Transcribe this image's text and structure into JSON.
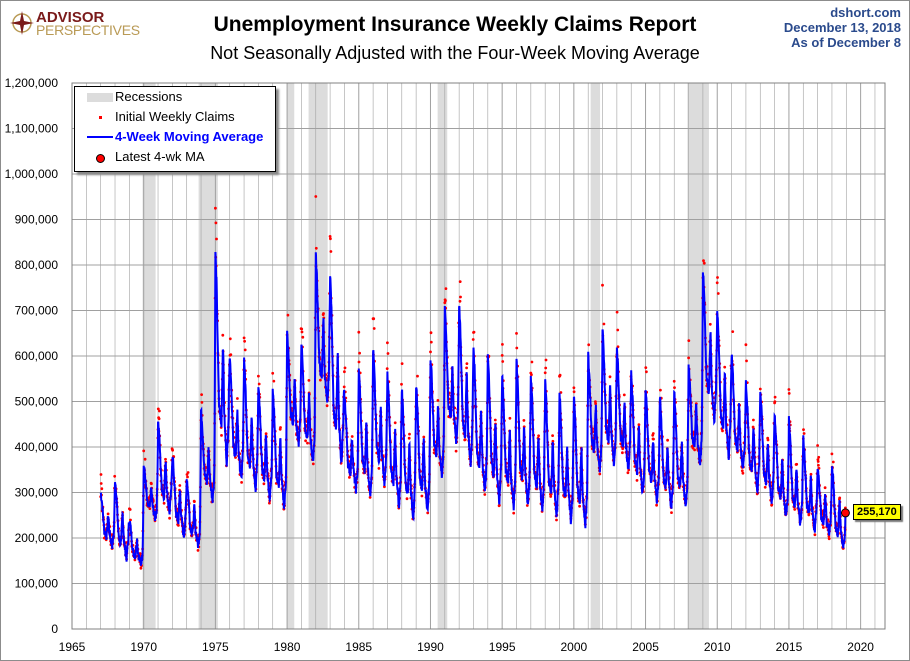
{
  "header": {
    "title": "Unemployment Insurance Weekly Claims Report",
    "subtitle": "Not Seasonally Adjusted with the Four-Week Moving Average",
    "source": "dshort.com",
    "date": "December 13, 2018",
    "as_of": "As  of December 8",
    "logo_text": [
      "ADVISOR",
      "PERSPECTIVES"
    ]
  },
  "colors": {
    "ma": "#0000ff",
    "claims": "#ff0000",
    "recession": "#dcdcdc",
    "grid": "#a0a0a0",
    "latest_label_bg": "#ffff00"
  },
  "chart_data": {
    "type": "line",
    "title": "Unemployment Insurance Weekly Claims Report",
    "subtitle": "Not Seasonally Adjusted with the Four-Week Moving Average",
    "xlim": [
      1965,
      2021.7
    ],
    "ylim": [
      0,
      1200000
    ],
    "x_ticks": [
      1965,
      1970,
      1975,
      1980,
      1985,
      1990,
      1995,
      2000,
      2005,
      2010,
      2015,
      2020
    ],
    "y_ticks": [
      0,
      100000,
      200000,
      300000,
      400000,
      500000,
      600000,
      700000,
      800000,
      900000,
      1000000,
      1100000,
      1200000
    ],
    "y_tick_labels": [
      "0",
      "100,000",
      "200,000",
      "300,000",
      "400,000",
      "500,000",
      "600,000",
      "700,000",
      "800,000",
      "900,000",
      "1,000,000",
      "1,100,000",
      "1,200,000"
    ],
    "grid": true,
    "legend_position": "top-left",
    "legend": [
      "Recessions",
      "Initial Weekly Claims",
      "4-Week Moving Average",
      "Latest 4-wk MA"
    ],
    "recessions": [
      [
        1969.92,
        1970.83
      ],
      [
        1973.83,
        1975.17
      ],
      [
        1980.0,
        1980.5
      ],
      [
        1981.5,
        1982.83
      ],
      [
        1990.5,
        1991.17
      ],
      [
        2001.17,
        2001.83
      ],
      [
        2007.92,
        2009.42
      ]
    ],
    "annual_ma_peak_trough": [
      [
        1967,
        300000,
        180000
      ],
      [
        1968,
        330000,
        150000
      ],
      [
        1969,
        240000,
        140000
      ],
      [
        1970,
        360000,
        240000
      ],
      [
        1971,
        460000,
        250000
      ],
      [
        1972,
        380000,
        200000
      ],
      [
        1973,
        330000,
        180000
      ],
      [
        1974,
        480000,
        280000
      ],
      [
        1975,
        830000,
        350000
      ],
      [
        1976,
        600000,
        320000
      ],
      [
        1977,
        590000,
        300000
      ],
      [
        1978,
        530000,
        280000
      ],
      [
        1979,
        530000,
        260000
      ],
      [
        1980,
        650000,
        400000
      ],
      [
        1981,
        630000,
        360000
      ],
      [
        1982,
        825000,
        480000
      ],
      [
        1983,
        785000,
        350000
      ],
      [
        1984,
        510000,
        300000
      ],
      [
        1985,
        570000,
        290000
      ],
      [
        1986,
        615000,
        310000
      ],
      [
        1987,
        560000,
        260000
      ],
      [
        1988,
        530000,
        240000
      ],
      [
        1989,
        540000,
        250000
      ],
      [
        1990,
        600000,
        330000
      ],
      [
        1991,
        710000,
        400000
      ],
      [
        1992,
        715000,
        350000
      ],
      [
        1993,
        620000,
        290000
      ],
      [
        1994,
        600000,
        270000
      ],
      [
        1995,
        560000,
        260000
      ],
      [
        1996,
        590000,
        260000
      ],
      [
        1997,
        560000,
        250000
      ],
      [
        1998,
        540000,
        240000
      ],
      [
        1999,
        520000,
        230000
      ],
      [
        2000,
        520000,
        220000
      ],
      [
        2001,
        600000,
        340000
      ],
      [
        2002,
        660000,
        350000
      ],
      [
        2003,
        620000,
        340000
      ],
      [
        2004,
        560000,
        290000
      ],
      [
        2005,
        530000,
        270000
      ],
      [
        2006,
        510000,
        260000
      ],
      [
        2007,
        520000,
        260000
      ],
      [
        2008,
        580000,
        360000
      ],
      [
        2009,
        790000,
        450000
      ],
      [
        2010,
        700000,
        370000
      ],
      [
        2011,
        605000,
        340000
      ],
      [
        2012,
        540000,
        300000
      ],
      [
        2013,
        525000,
        270000
      ],
      [
        2014,
        470000,
        240000
      ],
      [
        2015,
        460000,
        220000
      ],
      [
        2016,
        420000,
        210000
      ],
      [
        2017,
        355000,
        200000
      ],
      [
        2018,
        360000,
        170000
      ]
    ],
    "latest": {
      "date": 2018.94,
      "value": 255170,
      "label": "255,170"
    }
  }
}
